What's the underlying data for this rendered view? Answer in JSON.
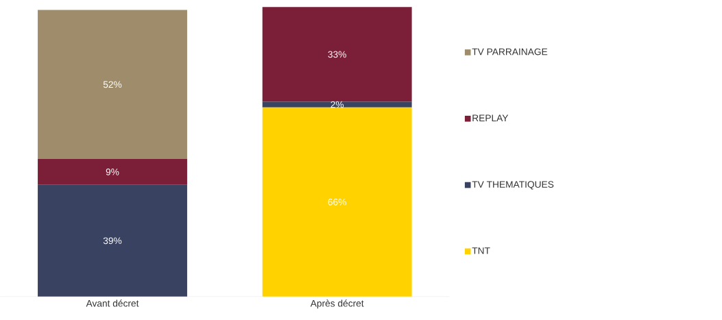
{
  "chart_data": {
    "type": "bar",
    "stacked": true,
    "categories": [
      "Avant décret",
      "Après décret"
    ],
    "legend": "right",
    "series": [
      {
        "name": "TNT",
        "color": "#ffd200",
        "values": [
          0,
          66
        ],
        "value_labels": [
          null,
          "66%"
        ]
      },
      {
        "name": "TV THEMATIQUES",
        "color": "#394260",
        "values": [
          39,
          2
        ],
        "value_labels": [
          "39%",
          "2%"
        ]
      },
      {
        "name": "REPLAY",
        "color": "#7b1f38",
        "values": [
          9,
          33
        ],
        "value_labels": [
          "9%",
          "33%"
        ]
      },
      {
        "name": "TV PARRAINAGE",
        "color": "#9e8c6a",
        "values": [
          52,
          0
        ],
        "value_labels": [
          "52%",
          null
        ]
      }
    ]
  }
}
